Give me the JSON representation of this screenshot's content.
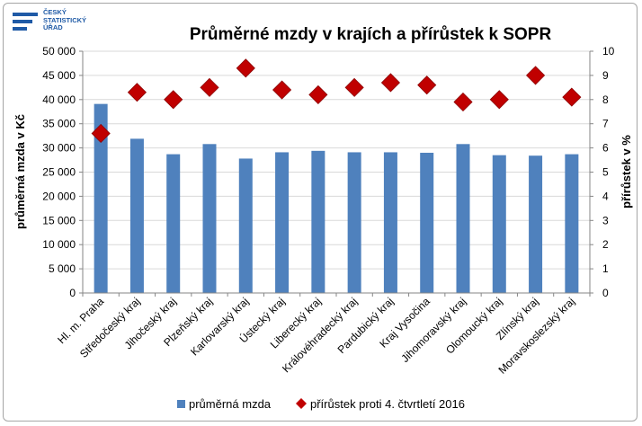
{
  "logo": {
    "line1": "ČESKÝ",
    "line2": "STATISTICKÝ",
    "line3": "ÚŘAD",
    "color": "#1f5aa6"
  },
  "chart_data": {
    "type": "bar",
    "title": "Průměrné mzdy v krajích a přírůstek k SOPR",
    "categories": [
      "Hl. m. Praha",
      "Středočeský kraj",
      "Jihočeský kraj",
      "Plzeňský kraj",
      "Karlovarský kraj",
      "Ústecký kraj",
      "Liberecký kraj",
      "Královéhradecký kraj",
      "Pardubický kraj",
      "Kraj Vysočina",
      "Jihomoravský kraj",
      "Olomoucký kraj",
      "Zlínský kraj",
      "Moravskoslezský kraj"
    ],
    "series": [
      {
        "name": "průměrná mzda",
        "axis": "left",
        "kind": "bar",
        "color": "#4f81bd",
        "values": [
          39100,
          31900,
          28700,
          30800,
          27800,
          29100,
          29400,
          29100,
          29100,
          29000,
          30800,
          28500,
          28400,
          28700
        ]
      },
      {
        "name": "přírůstek proti 4. čtvrtletí 2016",
        "axis": "right",
        "kind": "marker",
        "color": "#c00000",
        "values": [
          6.6,
          8.3,
          8.0,
          8.5,
          9.3,
          8.4,
          8.2,
          8.5,
          8.7,
          8.6,
          7.9,
          8.0,
          9.0,
          8.1
        ]
      }
    ],
    "ylabel": "průměrná mzda v Kč",
    "ylabel_right": "přírůstek v %",
    "ylim": [
      0,
      50000
    ],
    "ylim_right": [
      0,
      10
    ],
    "yticks": [
      "0",
      "5 000",
      "10 000",
      "15 000",
      "20 000",
      "25 000",
      "30 000",
      "35 000",
      "40 000",
      "45 000",
      "50 000"
    ],
    "yticks_right": [
      "0",
      "1",
      "2",
      "3",
      "4",
      "5",
      "6",
      "7",
      "8",
      "9",
      "10"
    ],
    "grid": true,
    "legend_position": "bottom"
  }
}
